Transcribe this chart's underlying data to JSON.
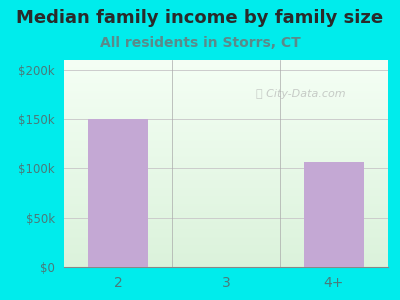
{
  "title": "Median family income by family size",
  "subtitle": "All residents in Storrs, CT",
  "categories": [
    "2",
    "3",
    "4+"
  ],
  "values": [
    150000,
    0,
    107000
  ],
  "bar_color": "#c4a8d4",
  "outer_bg": "#00ecec",
  "plot_bg_top": "#f0f8f0",
  "plot_bg_bottom": "#dff0df",
  "title_color": "#2a2a2a",
  "subtitle_color": "#5a8a8a",
  "tick_color": "#4a7a7a",
  "yticks": [
    0,
    50000,
    100000,
    150000,
    200000
  ],
  "ytick_labels": [
    "$0",
    "$50k",
    "$100k",
    "$150k",
    "$200k"
  ],
  "ylim": [
    0,
    210000
  ],
  "watermark": "City-Data.com",
  "title_fontsize": 13,
  "subtitle_fontsize": 10
}
